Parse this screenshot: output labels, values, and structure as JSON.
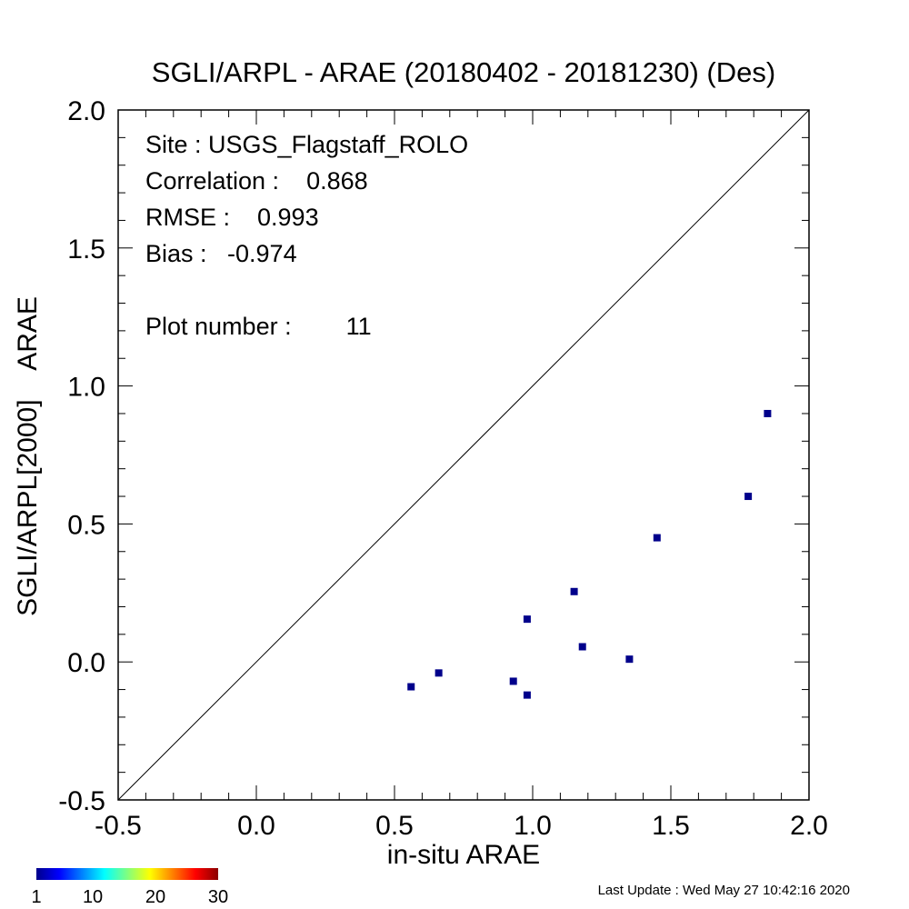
{
  "chart_data": {
    "type": "scatter",
    "title": "SGLI/ARPL - ARAE (20180402 - 20181230) (Des)",
    "xlabel": "in-situ ARAE",
    "ylabel": "SGLI/ARPL[2000]    ARAE",
    "xlim": [
      -0.5,
      2.0
    ],
    "ylim": [
      -0.5,
      2.0
    ],
    "x_tick_values": [
      -0.5,
      0.0,
      0.5,
      1.0,
      1.5,
      2.0
    ],
    "y_tick_values": [
      -0.5,
      0.0,
      0.5,
      1.0,
      1.5,
      2.0
    ],
    "x_tick_labels": [
      "-0.5",
      "0.0",
      "0.5",
      "1.0",
      "1.5",
      "2.0"
    ],
    "y_tick_labels": [
      "-0.5",
      "0.0",
      "0.5",
      "1.0",
      "1.5",
      "2.0"
    ],
    "reference_line": "1:1",
    "grid": false,
    "marker_color": "#00008b",
    "points": [
      {
        "x": 0.56,
        "y": -0.09
      },
      {
        "x": 0.66,
        "y": -0.04
      },
      {
        "x": 0.93,
        "y": -0.07
      },
      {
        "x": 0.98,
        "y": -0.12
      },
      {
        "x": 0.98,
        "y": 0.155
      },
      {
        "x": 1.15,
        "y": 0.255
      },
      {
        "x": 1.18,
        "y": 0.055
      },
      {
        "x": 1.35,
        "y": 0.01
      },
      {
        "x": 1.45,
        "y": 0.45
      },
      {
        "x": 1.78,
        "y": 0.6
      },
      {
        "x": 1.85,
        "y": 0.9
      }
    ],
    "annotations": {
      "site": "Site : USGS_Flagstaff_ROLO",
      "correlation": "Correlation :    0.868",
      "rmse": "RMSE :    0.993",
      "bias": "Bias :   -0.974",
      "plot_number": "Plot number :        11"
    },
    "colorbar": {
      "tick_labels": [
        "1",
        "10",
        "20",
        "30"
      ],
      "tick_values": [
        1,
        10,
        20,
        30
      ],
      "range": [
        1,
        30
      ],
      "colormap": [
        "#00008b",
        "#0000ff",
        "#0080ff",
        "#00ffff",
        "#80ff80",
        "#ffff00",
        "#ff8000",
        "#ff0000",
        "#8b0000"
      ]
    }
  },
  "footer": {
    "last_update": "Last Update : Wed May 27 10:42:16 2020"
  }
}
